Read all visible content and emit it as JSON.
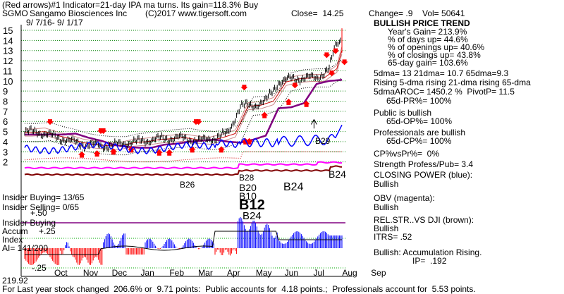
{
  "header": {
    "line1": "(Red arrows)#1 Indicator=21-day IPA ma turns. Its gain=118.3% Buy",
    "ticker": "SGMO",
    "company": "Sangamo Biosciences Inc",
    "copyright": "(C)2017 www.tigersoft.com",
    "close": "Close=  14.25",
    "change": "Change= .9",
    "vol": "Vol= 50641",
    "daterange": "9/ 7/16- 9/ 1/17"
  },
  "sidebar": {
    "lines": [
      "BULLISH PRICE TREND",
      "Year's Gain= 213.9%",
      "% of days up= 44.6%",
      "% of openings up= 40.6%",
      "% of closings up= 43.8%",
      "65-day gain= 103.6%",
      "5dma= 13 21dma= 10.7 65dma=9.3",
      "Rising 5-dma rising 21-dma rising 65-dma",
      "5dmaAROC= 1450.2 %  PivotP= 11.5",
      "65d-PR%= 100%",
      "Public is bullish",
      "65d-OP%= 100%",
      "Professionals are bullish",
      "65d-CP%= 100%",
      "CP%vsPr%=  0%",
      "Strength Profess/Pub= 3.4",
      "CLOSING POWER (blue):",
      "Bullish",
      "OBV (magenta):",
      "Bullish",
      "REL.STR..VS DJI (brown):",
      "Bullish",
      "ITRS= .52",
      "Bullish: Accumulation Rising.",
      "IP=  .192"
    ]
  },
  "left_labels": {
    "insider_buying": "Insider Buying= 13/65",
    "insider_selling": "Insider Selling= 0/65",
    "plus50": "+.50",
    "insider_buying2": "Insider Buying",
    "accum": "Accum",
    "index": "Index",
    "ai": "AI= 141/200",
    "plus25": "+.25",
    "minus25": "-.25",
    "bottom_value": "219.92"
  },
  "footer": "For Last year stock changed  206.6% or  9.71 points:  Public accounts for  4.18 points.;  Professionals account for  5.53 points.",
  "signals": [
    "B26",
    "B28",
    "B20",
    "B10",
    "B24",
    "B12",
    "B24",
    "B29",
    "B24"
  ],
  "colors": {
    "price_bar": "#000000",
    "grid": "#008000",
    "ma65": "#800080",
    "ma21": "#cc0000",
    "closing_power": "#0000ff",
    "obv": "#ff00ff",
    "relstr": "#800000",
    "accum_pos": "#0000ff",
    "accum_neg": "#ff0000",
    "arrow": "#ff0000"
  },
  "chart_data": {
    "type": "line",
    "ylim": [
      1,
      15
    ],
    "yticks": [
      2,
      3,
      4,
      5,
      6,
      7,
      8,
      9,
      10,
      11,
      12,
      13,
      14,
      15
    ],
    "months": [
      "Oct",
      "Nov",
      "Dec",
      "Jan",
      "Feb",
      "Mar",
      "Apr",
      "May",
      "Jun",
      "Jul",
      "Aug",
      "Sep"
    ],
    "series": [
      {
        "name": "price",
        "x": [
          0,
          10,
          20,
          30,
          40,
          50,
          60,
          70,
          80,
          90,
          100,
          110,
          120,
          130,
          140,
          150,
          160,
          170,
          180,
          190,
          200,
          210,
          220,
          230,
          240,
          245,
          250
        ],
        "values": [
          4.9,
          5.0,
          4.6,
          4.3,
          3.9,
          3.7,
          3.6,
          3.6,
          3.9,
          4.0,
          4.2,
          4.3,
          4.4,
          4.2,
          4.1,
          4.4,
          4.8,
          7.5,
          7.6,
          8.0,
          9.9,
          10.2,
          10.3,
          10.3,
          11.2,
          13.5,
          14.25
        ]
      }
    ]
  }
}
